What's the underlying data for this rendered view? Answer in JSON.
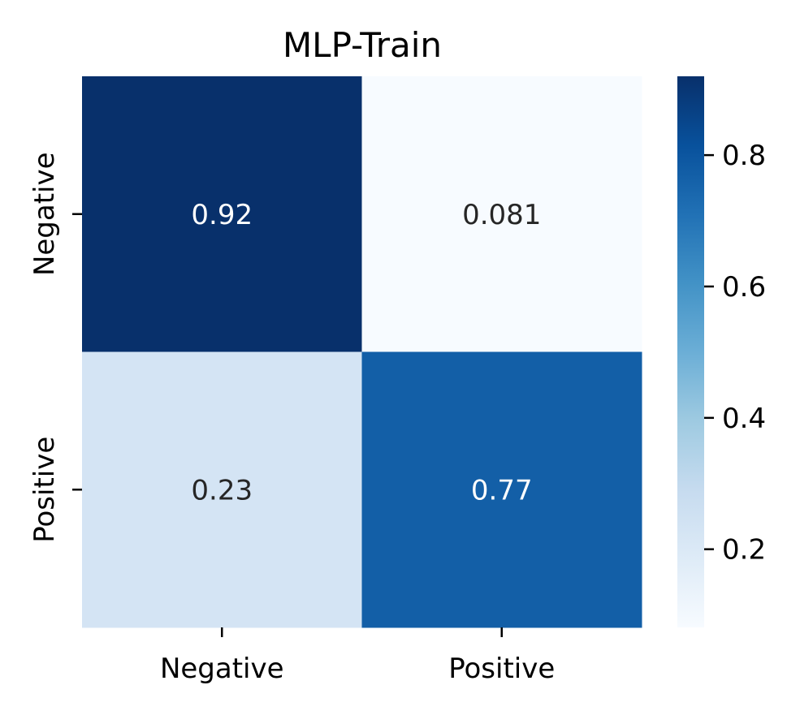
{
  "chart_data": {
    "type": "heatmap",
    "title": "MLP-Train",
    "xlabel": "",
    "ylabel": "",
    "x_categories": [
      "Negative",
      "Positive"
    ],
    "y_categories": [
      "Negative",
      "Positive"
    ],
    "values": [
      [
        0.92,
        0.081
      ],
      [
        0.23,
        0.77
      ]
    ],
    "cell_labels": [
      [
        "0.92",
        "0.081"
      ],
      [
        "0.23",
        "0.77"
      ]
    ],
    "colormap": "Blues",
    "colorbar": {
      "range": [
        0.081,
        0.92
      ],
      "ticks": [
        0.2,
        0.4,
        0.6,
        0.8
      ],
      "tick_labels": [
        "0.2",
        "0.4",
        "0.6",
        "0.8"
      ]
    },
    "colors": {
      "dark_text": "#262626",
      "light_text": "#ffffff"
    }
  }
}
